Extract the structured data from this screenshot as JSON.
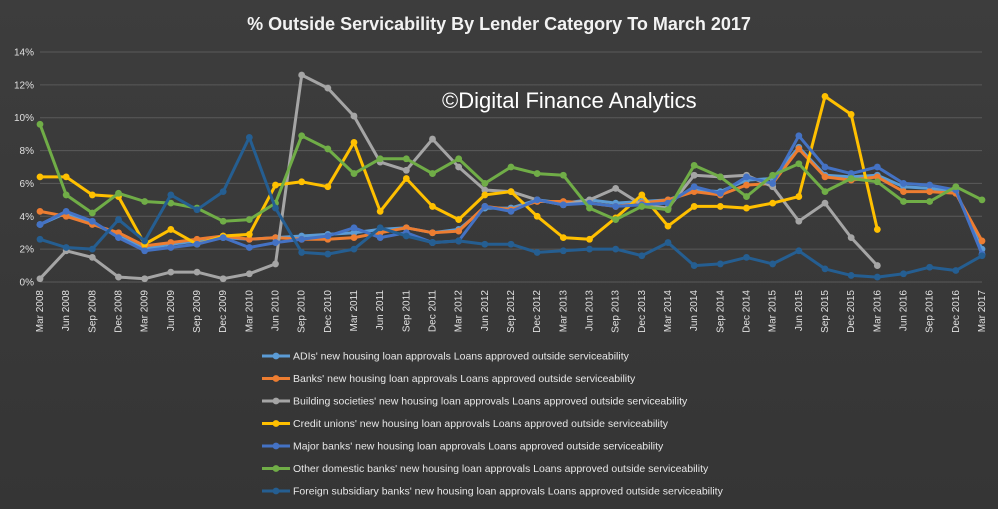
{
  "chart_data": {
    "type": "line",
    "title": "% Outside Servicability By Lender Category To  March 2017",
    "watermark": "©Digital Finance Analytics",
    "x": [
      "Mar 2008",
      "Jun 2008",
      "Sep 2008",
      "Dec 2008",
      "Mar 2009",
      "Jun 2009",
      "Sep 2009",
      "Dec 2009",
      "Mar 2010",
      "Jun 2010",
      "Sep 2010",
      "Dec 2010",
      "Mar 2011",
      "Jun 2011",
      "Sep 2011",
      "Dec 2011",
      "Mar 2012",
      "Jun 2012",
      "Sep 2012",
      "Dec 2012",
      "Mar 2013",
      "Jun 2013",
      "Sep 2013",
      "Dec 2013",
      "Mar 2014",
      "Jun 2014",
      "Sep 2014",
      "Dec 2014",
      "Mar 2015",
      "Jun 2015",
      "Sep 2015",
      "Dec 2015",
      "Mar 2016",
      "Jun 2016",
      "Sep 2016",
      "Dec 2016",
      "Mar 2017"
    ],
    "yticks": [
      "0%",
      "2%",
      "4%",
      "6%",
      "8%",
      "10%",
      "12%",
      "14%"
    ],
    "ylim": [
      0,
      14
    ],
    "grid": true,
    "legend_position": "bottom",
    "series": [
      {
        "name": "ADIs' new housing loan approvals Loans approved outside serviceability",
        "color": "#5b9bd5",
        "values": [
          3.5,
          4.2,
          3.6,
          2.8,
          2.0,
          2.3,
          2.5,
          2.7,
          2.6,
          2.7,
          2.8,
          2.9,
          3.0,
          3.2,
          3.3,
          3.0,
          3.2,
          4.5,
          4.5,
          5.0,
          4.8,
          5.0,
          4.8,
          4.9,
          5.0,
          5.6,
          5.5,
          6.2,
          6.3,
          8.2,
          6.5,
          6.4,
          6.5,
          5.8,
          5.7,
          5.5,
          2.0
        ]
      },
      {
        "name": "Banks' new housing loan approvals Loans approved outside serviceability",
        "color": "#ed7d31",
        "values": [
          4.3,
          4.0,
          3.5,
          3.0,
          2.2,
          2.4,
          2.6,
          2.8,
          2.6,
          2.7,
          2.6,
          2.6,
          2.7,
          3.0,
          3.3,
          3.0,
          3.1,
          4.6,
          4.4,
          4.9,
          4.9,
          4.8,
          4.6,
          4.8,
          5.0,
          5.5,
          5.3,
          5.9,
          6.0,
          8.1,
          6.4,
          6.2,
          6.4,
          5.5,
          5.5,
          5.4,
          2.5
        ]
      },
      {
        "name": "Building societies' new housing loan approvals Loans approved outside serviceability",
        "color": "#a5a5a5",
        "values": [
          0.2,
          1.9,
          1.5,
          0.3,
          0.2,
          0.6,
          0.6,
          0.2,
          0.5,
          1.1,
          12.6,
          11.8,
          10.1,
          7.3,
          6.8,
          8.7,
          7.0,
          5.6,
          5.5,
          5.0,
          4.7,
          5.0,
          5.7,
          4.7,
          4.5,
          6.5,
          6.4,
          6.5,
          5.8,
          3.7,
          4.8,
          2.7,
          1.0,
          null,
          null,
          null,
          null
        ]
      },
      {
        "name": "Credit unions' new housing loan approvals Loans approved outside serviceability",
        "color": "#ffc000",
        "values": [
          6.4,
          6.4,
          5.3,
          5.2,
          2.3,
          3.2,
          2.3,
          2.8,
          2.9,
          5.9,
          6.1,
          5.8,
          8.5,
          4.3,
          6.3,
          4.6,
          3.8,
          5.3,
          5.5,
          4.0,
          2.7,
          2.6,
          3.9,
          5.3,
          3.4,
          4.6,
          4.6,
          4.5,
          4.8,
          5.2,
          11.3,
          10.2,
          3.2,
          null,
          null,
          null,
          null
        ]
      },
      {
        "name": "Major banks' new housing loan approvals Loans approved outside serviceability",
        "color": "#4472c4",
        "values": [
          3.5,
          4.3,
          3.7,
          2.7,
          1.9,
          2.1,
          2.3,
          2.7,
          2.1,
          2.4,
          2.6,
          2.8,
          3.3,
          2.7,
          3.0,
          2.4,
          2.5,
          4.6,
          4.3,
          5.0,
          4.7,
          4.8,
          4.6,
          4.7,
          4.8,
          5.8,
          5.4,
          6.4,
          6.0,
          8.9,
          7.0,
          6.6,
          7.0,
          6.0,
          5.9,
          5.6,
          1.7
        ]
      },
      {
        "name": "Other domestic banks' new housing loan approvals Loans approved outside serviceability",
        "color": "#70ad47",
        "values": [
          9.6,
          5.3,
          4.2,
          5.4,
          4.9,
          4.8,
          4.5,
          3.7,
          3.8,
          4.8,
          8.9,
          8.1,
          6.6,
          7.5,
          7.5,
          6.6,
          7.5,
          6.0,
          7.0,
          6.6,
          6.5,
          4.5,
          3.8,
          4.6,
          4.4,
          7.1,
          6.4,
          5.2,
          6.5,
          7.2,
          5.5,
          6.3,
          6.1,
          4.9,
          4.9,
          5.8,
          5.0
        ]
      },
      {
        "name": "Foreign subsidiary banks' new housing loan approvals Loans approved outside serviceability",
        "color": "#255e91",
        "values": [
          2.6,
          2.1,
          2.0,
          3.8,
          2.5,
          5.3,
          4.4,
          5.5,
          8.8,
          4.5,
          1.8,
          1.7,
          2.0,
          3.3,
          2.8,
          2.4,
          2.5,
          2.3,
          2.3,
          1.8,
          1.9,
          2.0,
          2.0,
          1.6,
          2.4,
          1.0,
          1.1,
          1.5,
          1.1,
          1.9,
          0.8,
          0.4,
          0.3,
          0.5,
          0.9,
          0.7,
          1.6
        ]
      }
    ]
  }
}
